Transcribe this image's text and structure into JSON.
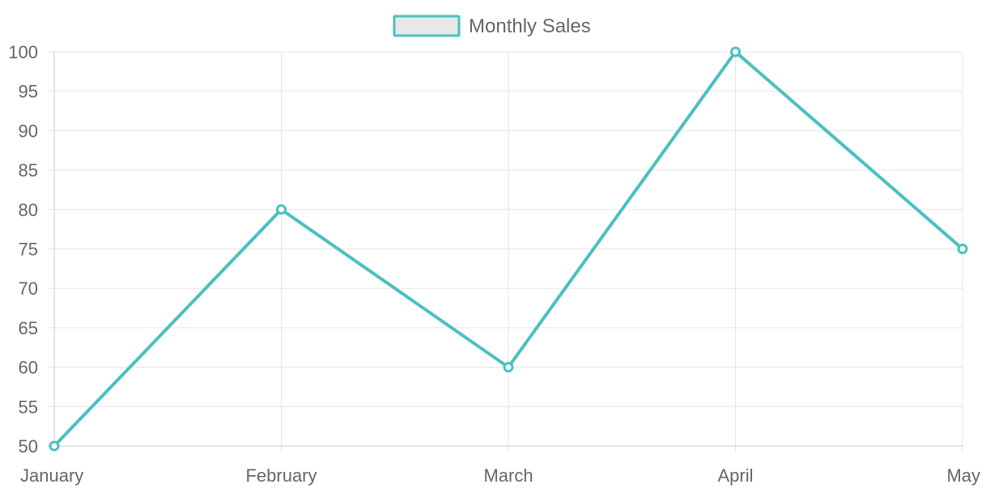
{
  "chart_data": {
    "type": "line",
    "categories": [
      "January",
      "February",
      "March",
      "April",
      "May"
    ],
    "series": [
      {
        "name": "Monthly Sales",
        "values": [
          50,
          80,
          60,
          100,
          75
        ]
      }
    ],
    "ylim": [
      50,
      100
    ],
    "y_ticks": [
      50,
      55,
      60,
      65,
      70,
      75,
      80,
      85,
      90,
      95,
      100
    ],
    "y_tick_labels": [
      "50",
      "55",
      "60",
      "65",
      "70",
      "75",
      "80",
      "85",
      "90",
      "95",
      "100"
    ],
    "grid": true,
    "legend_position": "top-center",
    "colors": {
      "line": "#4bc0c0",
      "legend_fill": "#e8e8e8",
      "grid": "#e5e5e5",
      "axis": "#c8c8c8",
      "text": "#666666"
    }
  }
}
